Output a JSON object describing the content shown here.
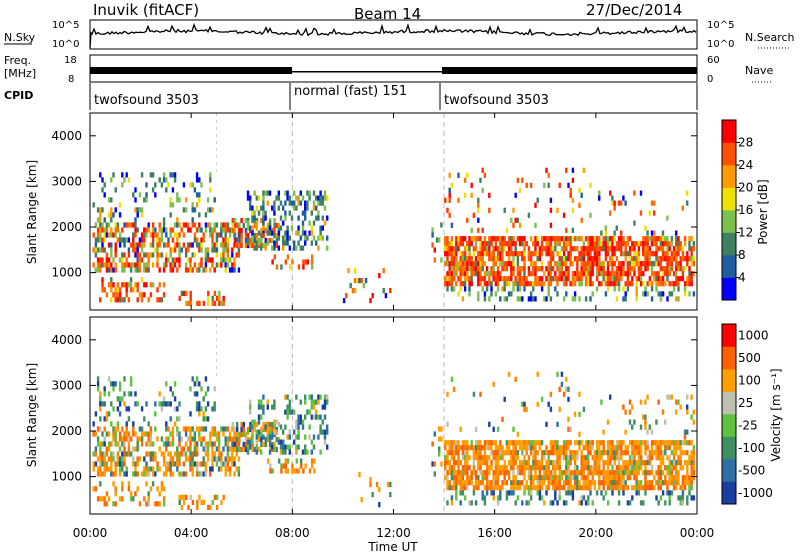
{
  "header": {
    "station": "Inuvik (fitACF)",
    "beam": "Beam 14",
    "date": "27/Dec/2014"
  },
  "summary_panels": {
    "nsky": {
      "label": "N.Sky",
      "ticks": [
        "10^5",
        "10^0"
      ]
    },
    "nsearch": {
      "label": "N.Search",
      "ticks": [
        "10^5",
        "10^0"
      ]
    },
    "freq": {
      "label_line1": "Freq.",
      "label_line2": "[MHz]",
      "ticks": [
        "18",
        "8"
      ]
    },
    "nave": {
      "label": "Nave",
      "ticks": [
        "60",
        "0"
      ]
    },
    "cpid": {
      "label": "CPID",
      "segments": [
        {
          "name": "twofsound 3503",
          "start_hour": 0,
          "end_hour": 8
        },
        {
          "name": "normal (fast) 151",
          "start_hour": 8,
          "end_hour": 14
        },
        {
          "name": "twofsound 3503",
          "start_hour": 14,
          "end_hour": 24
        }
      ]
    }
  },
  "chart_data": [
    {
      "type": "heatmap",
      "quantity": "power",
      "ylabel": "Slant Range [km]",
      "ylim": [
        180,
        4500
      ],
      "yticks": [
        "4000",
        "3000",
        "2000",
        "1000"
      ],
      "xlim_hours": [
        0,
        24
      ],
      "colorbar": {
        "label": "Power [dB]",
        "ticks": [
          "28",
          "24",
          "20",
          "16",
          "12",
          "8",
          "4"
        ],
        "colors": [
          "#0000ff",
          "#1f5fa0",
          "#3f8060",
          "#7dc050",
          "#f0e000",
          "#ff9a00",
          "#ff5000",
          "#ff0000"
        ]
      }
    },
    {
      "type": "heatmap",
      "quantity": "velocity",
      "ylabel": "Slant Range [km]",
      "ylim": [
        180,
        4500
      ],
      "yticks": [
        "4000",
        "3000",
        "2000",
        "1000"
      ],
      "xlim_hours": [
        0,
        24
      ],
      "colorbar": {
        "label": "Velocity [m s⁻¹]",
        "ticks": [
          "1000",
          "500",
          "100",
          "25",
          "-25",
          "-100",
          "-500",
          "-1000"
        ],
        "colors": [
          "#1a3fa0",
          "#2f6fa8",
          "#3f9060",
          "#60c040",
          "#c0c0b0",
          "#ffa000",
          "#ff6000",
          "#ff0000"
        ]
      }
    }
  ],
  "x_axis": {
    "label": "Time UT",
    "ticks": [
      "00:00",
      "04:00",
      "08:00",
      "12:00",
      "16:00",
      "20:00",
      "00:00"
    ]
  }
}
